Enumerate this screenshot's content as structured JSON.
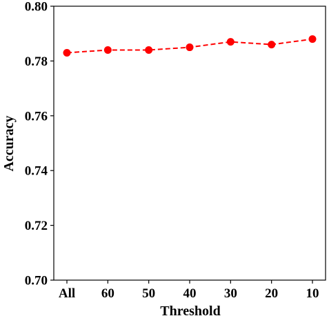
{
  "chart_data": {
    "type": "line",
    "title": "",
    "xlabel": "Threshold",
    "ylabel": "Accuracy",
    "categories": [
      "All",
      "60",
      "50",
      "40",
      "30",
      "20",
      "10"
    ],
    "series": [
      {
        "values": [
          0.783,
          0.784,
          0.784,
          0.785,
          0.787,
          0.786,
          0.788
        ],
        "color": "#ff0000",
        "line_style": "dashed",
        "marker": "circle"
      }
    ],
    "ylim": [
      0.7,
      0.8
    ],
    "yticks": [
      "0.70",
      "0.72",
      "0.74",
      "0.76",
      "0.78",
      "0.80"
    ],
    "grid": false,
    "legend": "none"
  }
}
